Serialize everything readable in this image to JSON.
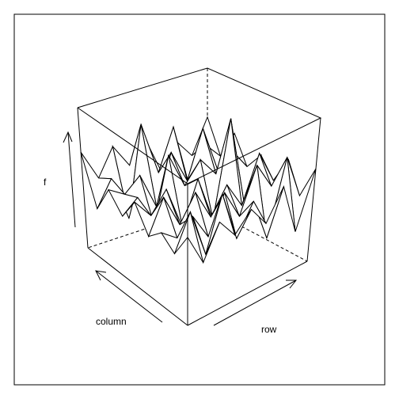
{
  "chart_data": {
    "type": "surface",
    "title": "",
    "axis_labels": {
      "x": "row",
      "y": "column",
      "z": "f"
    },
    "ticks": "none",
    "box": true,
    "line_color": "#000000",
    "fill_color": "#ffffff",
    "note": ""
  }
}
